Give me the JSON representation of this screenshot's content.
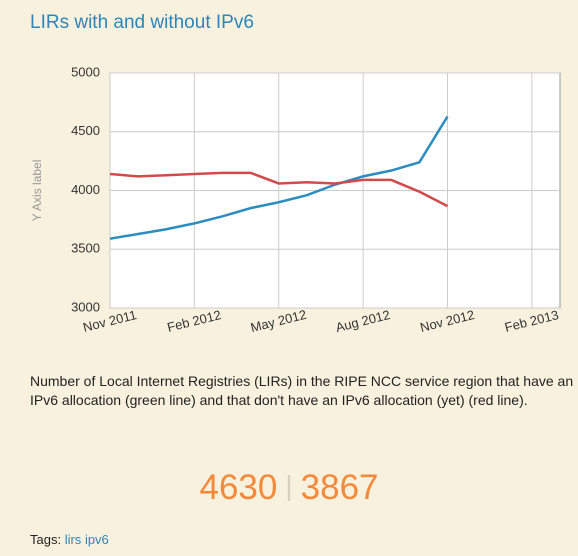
{
  "title": "LIRs with and without IPv6",
  "chart_data": {
    "type": "line",
    "y_axis_label": "Y Axis label",
    "x": [
      "2011-11",
      "2011-12",
      "2012-01",
      "2012-02",
      "2012-03",
      "2012-04",
      "2012-05",
      "2012-06",
      "2012-07",
      "2012-08",
      "2012-09",
      "2012-10",
      "2012-11"
    ],
    "series": [
      {
        "color": "#2b8cc0",
        "values": [
          3590,
          3630,
          3670,
          3720,
          3780,
          3850,
          3900,
          3960,
          4050,
          4120,
          4170,
          4240,
          4630
        ]
      },
      {
        "color": "#d24b4b",
        "values": [
          4140,
          4120,
          4130,
          4140,
          4150,
          4150,
          4060,
          4070,
          4060,
          4090,
          4090,
          3990,
          3867
        ]
      }
    ],
    "xlim": [
      "2011-11",
      "2013-03"
    ],
    "xticks": [
      {
        "value": "2011-11",
        "label": "Nov 2011"
      },
      {
        "value": "2012-02",
        "label": "Feb 2012"
      },
      {
        "value": "2012-05",
        "label": "May 2012"
      },
      {
        "value": "2012-08",
        "label": "Aug 2012"
      },
      {
        "value": "2012-11",
        "label": "Nov 2012"
      },
      {
        "value": "2013-02",
        "label": "Feb 2013"
      }
    ],
    "ylim": [
      3000,
      5000
    ],
    "yticks": [
      3000,
      3500,
      4000,
      4500,
      5000
    ],
    "grid": true
  },
  "description": "Number of Local Internet Registries (LIRs) in the RIPE NCC service region that have an IPv6 allocation (green line) and that don't have an IPv6 allocation (yet) (red line).",
  "stats": [
    4630,
    3867
  ],
  "tags_label": "Tags:",
  "tags": [
    "lirs",
    "ipv6"
  ]
}
